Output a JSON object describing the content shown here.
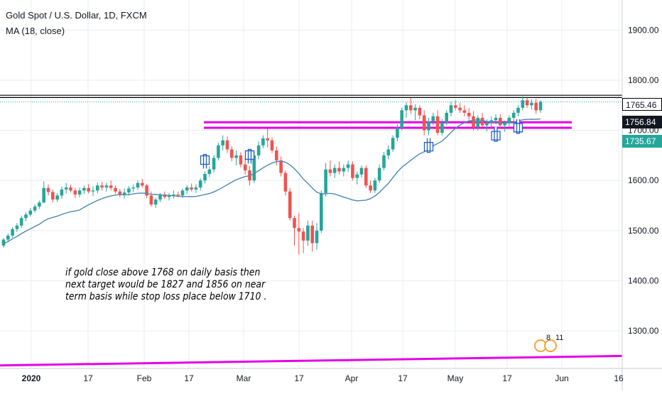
{
  "legend": {
    "title": "Gold Spot / U.S. Dollar, 1D, FXCM",
    "study": "MA (18, close)"
  },
  "note": {
    "lines": [
      "if gold close above 1768 on daily basis then",
      "next target would be 1827 and 1856 on near",
      "term basis while stop loss place below 1710 ."
    ]
  },
  "price_labels": {
    "resistance": "1765.46",
    "last": "1756.84",
    "ma": "1735.67"
  },
  "events": {
    "count_left": "8",
    "count_right": "11"
  },
  "colors": {
    "up": "#26a69a",
    "down": "#ef5350",
    "ma": "#4a8ab0",
    "support": "#e600e6",
    "resistance": "#000000",
    "last_line": "#26a69a",
    "arrow": "#1f5fbf"
  },
  "chart_data": {
    "type": "candlestick",
    "title": "Gold Spot / U.S. Dollar, 1D, FXCM",
    "x_ticks": [
      "2020",
      "17",
      "Feb",
      "17",
      "Mar",
      "17",
      "Apr",
      "17",
      "May",
      "17",
      "Jun",
      "16"
    ],
    "y_ticks": [
      1300,
      1400,
      1500,
      1600,
      1700,
      1800,
      1900
    ],
    "ylim": [
      1225,
      1960
    ],
    "grid": true,
    "candles": [
      [
        1470,
        1485,
        1466,
        1482
      ],
      [
        1482,
        1494,
        1478,
        1490
      ],
      [
        1490,
        1507,
        1486,
        1503
      ],
      [
        1503,
        1515,
        1497,
        1510
      ],
      [
        1510,
        1530,
        1505,
        1525
      ],
      [
        1525,
        1537,
        1519,
        1532
      ],
      [
        1532,
        1545,
        1528,
        1540
      ],
      [
        1540,
        1552,
        1536,
        1548
      ],
      [
        1548,
        1560,
        1543,
        1556
      ],
      [
        1556,
        1598,
        1555,
        1585
      ],
      [
        1585,
        1592,
        1570,
        1577
      ],
      [
        1577,
        1582,
        1556,
        1562
      ],
      [
        1562,
        1575,
        1557,
        1570
      ],
      [
        1570,
        1588,
        1563,
        1582
      ],
      [
        1582,
        1595,
        1574,
        1586
      ],
      [
        1586,
        1592,
        1576,
        1580
      ],
      [
        1580,
        1585,
        1565,
        1572
      ],
      [
        1572,
        1586,
        1566,
        1580
      ],
      [
        1580,
        1590,
        1573,
        1585
      ],
      [
        1585,
        1593,
        1574,
        1578
      ],
      [
        1578,
        1588,
        1569,
        1580
      ],
      [
        1580,
        1596,
        1574,
        1590
      ],
      [
        1590,
        1597,
        1580,
        1586
      ],
      [
        1586,
        1595,
        1578,
        1590
      ],
      [
        1590,
        1600,
        1580,
        1585
      ],
      [
        1585,
        1590,
        1574,
        1578
      ],
      [
        1578,
        1583,
        1567,
        1572
      ],
      [
        1572,
        1584,
        1564,
        1576
      ],
      [
        1576,
        1589,
        1570,
        1584
      ],
      [
        1584,
        1592,
        1577,
        1586
      ],
      [
        1586,
        1600,
        1581,
        1595
      ],
      [
        1595,
        1603,
        1586,
        1590
      ],
      [
        1590,
        1593,
        1565,
        1570
      ],
      [
        1570,
        1578,
        1548,
        1552
      ],
      [
        1552,
        1565,
        1545,
        1562
      ],
      [
        1562,
        1575,
        1557,
        1572
      ],
      [
        1572,
        1578,
        1563,
        1567
      ],
      [
        1567,
        1575,
        1560,
        1570
      ],
      [
        1570,
        1580,
        1564,
        1572
      ],
      [
        1572,
        1578,
        1566,
        1570
      ],
      [
        1570,
        1584,
        1565,
        1580
      ],
      [
        1580,
        1590,
        1573,
        1586
      ],
      [
        1586,
        1594,
        1578,
        1582
      ],
      [
        1582,
        1592,
        1575,
        1586
      ],
      [
        1586,
        1604,
        1580,
        1600
      ],
      [
        1600,
        1618,
        1594,
        1613
      ],
      [
        1613,
        1628,
        1607,
        1622
      ],
      [
        1622,
        1650,
        1616,
        1645
      ],
      [
        1645,
        1675,
        1640,
        1670
      ],
      [
        1670,
        1690,
        1660,
        1680
      ],
      [
        1680,
        1688,
        1655,
        1662
      ],
      [
        1662,
        1668,
        1638,
        1645
      ],
      [
        1645,
        1660,
        1630,
        1650
      ],
      [
        1650,
        1656,
        1626,
        1632
      ],
      [
        1632,
        1645,
        1612,
        1620
      ],
      [
        1620,
        1628,
        1590,
        1600
      ],
      [
        1600,
        1658,
        1595,
        1650
      ],
      [
        1650,
        1678,
        1642,
        1670
      ],
      [
        1670,
        1690,
        1664,
        1684
      ],
      [
        1684,
        1703,
        1666,
        1680
      ],
      [
        1680,
        1686,
        1655,
        1660
      ],
      [
        1660,
        1668,
        1630,
        1640
      ],
      [
        1640,
        1648,
        1608,
        1615
      ],
      [
        1615,
        1620,
        1570,
        1578
      ],
      [
        1578,
        1585,
        1520,
        1525
      ],
      [
        1525,
        1530,
        1470,
        1505
      ],
      [
        1505,
        1535,
        1452,
        1498
      ],
      [
        1498,
        1505,
        1455,
        1480
      ],
      [
        1480,
        1520,
        1470,
        1510
      ],
      [
        1510,
        1520,
        1458,
        1475
      ],
      [
        1475,
        1515,
        1462,
        1500
      ],
      [
        1500,
        1580,
        1495,
        1575
      ],
      [
        1575,
        1635,
        1568,
        1622
      ],
      [
        1622,
        1640,
        1608,
        1615
      ],
      [
        1615,
        1632,
        1605,
        1625
      ],
      [
        1625,
        1638,
        1612,
        1618
      ],
      [
        1618,
        1632,
        1608,
        1625
      ],
      [
        1625,
        1640,
        1617,
        1632
      ],
      [
        1632,
        1638,
        1600,
        1605
      ],
      [
        1605,
        1618,
        1592,
        1612
      ],
      [
        1612,
        1630,
        1606,
        1625
      ],
      [
        1625,
        1630,
        1585,
        1590
      ],
      [
        1590,
        1600,
        1575,
        1580
      ],
      [
        1580,
        1605,
        1575,
        1600
      ],
      [
        1600,
        1632,
        1595,
        1625
      ],
      [
        1625,
        1657,
        1620,
        1650
      ],
      [
        1650,
        1670,
        1642,
        1662
      ],
      [
        1662,
        1690,
        1657,
        1685
      ],
      [
        1685,
        1712,
        1678,
        1705
      ],
      [
        1705,
        1745,
        1700,
        1740
      ],
      [
        1740,
        1756,
        1725,
        1750
      ],
      [
        1750,
        1765,
        1733,
        1740
      ],
      [
        1740,
        1752,
        1720,
        1745
      ],
      [
        1745,
        1750,
        1722,
        1730
      ],
      [
        1730,
        1740,
        1690,
        1700
      ],
      [
        1700,
        1725,
        1690,
        1718
      ],
      [
        1718,
        1735,
        1710,
        1728
      ],
      [
        1728,
        1740,
        1690,
        1695
      ],
      [
        1695,
        1722,
        1690,
        1715
      ],
      [
        1715,
        1740,
        1710,
        1735
      ],
      [
        1735,
        1757,
        1728,
        1750
      ],
      [
        1750,
        1760,
        1740,
        1745
      ],
      [
        1745,
        1755,
        1735,
        1740
      ],
      [
        1740,
        1750,
        1728,
        1735
      ],
      [
        1735,
        1744,
        1720,
        1728
      ],
      [
        1728,
        1738,
        1700,
        1706
      ],
      [
        1706,
        1730,
        1700,
        1725
      ],
      [
        1725,
        1735,
        1705,
        1710
      ],
      [
        1710,
        1722,
        1698,
        1715
      ],
      [
        1715,
        1728,
        1705,
        1720
      ],
      [
        1720,
        1732,
        1712,
        1725
      ],
      [
        1725,
        1732,
        1705,
        1710
      ],
      [
        1710,
        1720,
        1697,
        1715
      ],
      [
        1715,
        1730,
        1708,
        1725
      ],
      [
        1725,
        1740,
        1718,
        1735
      ],
      [
        1735,
        1750,
        1728,
        1745
      ],
      [
        1745,
        1768,
        1740,
        1760
      ],
      [
        1760,
        1765,
        1745,
        1750
      ],
      [
        1750,
        1762,
        1742,
        1755
      ],
      [
        1755,
        1763,
        1733,
        1740
      ],
      [
        1740,
        1760,
        1735,
        1757
      ]
    ],
    "ma_period": 18,
    "horizontal_lines": [
      1765.46,
      1770,
      1756.84
    ],
    "support_band": [
      1705,
      1716
    ],
    "trendline": {
      "from": [
        0,
        1231
      ],
      "to": [
        1,
        1250
      ]
    },
    "markers": [
      {
        "index": 45,
        "dir": "up"
      },
      {
        "index": 55,
        "dir": "up"
      },
      {
        "index": 95,
        "dir": "down"
      },
      {
        "index": 110,
        "dir": "down"
      },
      {
        "index": 115,
        "dir": "down"
      }
    ]
  }
}
